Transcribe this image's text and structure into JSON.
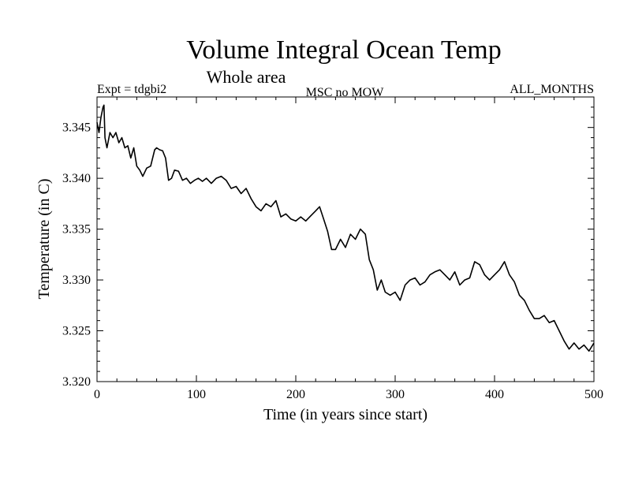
{
  "chart_data": {
    "type": "line",
    "title": "Volume Integral Ocean Temp",
    "subtitle": "Whole area",
    "annotations": {
      "experiment": "Expt = tdgbi2",
      "variant": "MSC no MOW",
      "months": "ALL_MONTHS"
    },
    "xlabel": "Time (in years since start)",
    "ylabel": "Temperature (in C)",
    "xlim": [
      0,
      500
    ],
    "ylim": [
      3.32,
      3.348
    ],
    "x_ticks": [
      0,
      100,
      200,
      300,
      400,
      500
    ],
    "x_tick_labels": [
      "0",
      "100",
      "200",
      "300",
      "400",
      "500"
    ],
    "y_ticks": [
      3.32,
      3.325,
      3.33,
      3.335,
      3.34,
      3.345
    ],
    "y_tick_labels": [
      "3.320",
      "3.325",
      "3.330",
      "3.335",
      "3.340",
      "3.345"
    ],
    "grid": false,
    "line_color": "#000000",
    "series": [
      {
        "x": [
          0,
          2,
          4,
          6,
          7,
          8,
          10,
          13,
          16,
          19,
          22,
          25,
          28,
          31,
          34,
          37,
          40,
          43,
          46,
          50,
          54,
          58,
          60,
          63,
          66,
          69,
          72,
          75,
          78,
          82,
          86,
          90,
          94,
          98,
          102,
          106,
          110,
          115,
          120,
          125,
          130,
          135,
          140,
          145,
          150,
          155,
          160,
          165,
          170,
          175,
          180,
          185,
          190,
          195,
          200,
          205,
          210,
          215,
          220,
          224,
          228,
          232,
          236,
          240,
          245,
          250,
          255,
          260,
          265,
          270,
          274,
          278,
          282,
          286,
          290,
          295,
          300,
          305,
          310,
          315,
          320,
          325,
          330,
          335,
          340,
          345,
          350,
          355,
          360,
          365,
          370,
          375,
          380,
          385,
          390,
          395,
          400,
          405,
          410,
          415,
          420,
          425,
          430,
          435,
          440,
          445,
          450,
          455,
          460,
          465,
          470,
          475,
          480,
          485,
          490,
          495,
          500
        ],
        "y": [
          3.3455,
          3.3445,
          3.346,
          3.347,
          3.3472,
          3.344,
          3.343,
          3.3445,
          3.344,
          3.3445,
          3.3435,
          3.344,
          3.343,
          3.3432,
          3.342,
          3.343,
          3.3412,
          3.3408,
          3.3402,
          3.341,
          3.3412,
          3.3428,
          3.343,
          3.3428,
          3.3427,
          3.342,
          3.3398,
          3.34,
          3.3408,
          3.3407,
          3.3398,
          3.34,
          3.3395,
          3.3398,
          3.34,
          3.3397,
          3.34,
          3.3395,
          3.34,
          3.3402,
          3.3398,
          3.339,
          3.3392,
          3.3385,
          3.339,
          3.338,
          3.3372,
          3.3368,
          3.3375,
          3.3372,
          3.3378,
          3.3362,
          3.3365,
          3.336,
          3.3358,
          3.3362,
          3.3358,
          3.3363,
          3.3368,
          3.3372,
          3.336,
          3.3348,
          3.333,
          3.333,
          3.334,
          3.3332,
          3.3345,
          3.334,
          3.335,
          3.3345,
          3.332,
          3.331,
          3.329,
          3.33,
          3.3288,
          3.3285,
          3.3288,
          3.328,
          3.3295,
          3.33,
          3.3302,
          3.3295,
          3.3298,
          3.3305,
          3.3308,
          3.331,
          3.3305,
          3.33,
          3.3308,
          3.3295,
          3.33,
          3.3302,
          3.3318,
          3.3315,
          3.3305,
          3.33,
          3.3305,
          3.331,
          3.3318,
          3.3305,
          3.3298,
          3.3285,
          3.328,
          3.327,
          3.3262,
          3.3262,
          3.3265,
          3.3258,
          3.326,
          3.325,
          3.324,
          3.3232,
          3.3238,
          3.3232,
          3.3236,
          3.323,
          3.3238
        ]
      }
    ]
  }
}
